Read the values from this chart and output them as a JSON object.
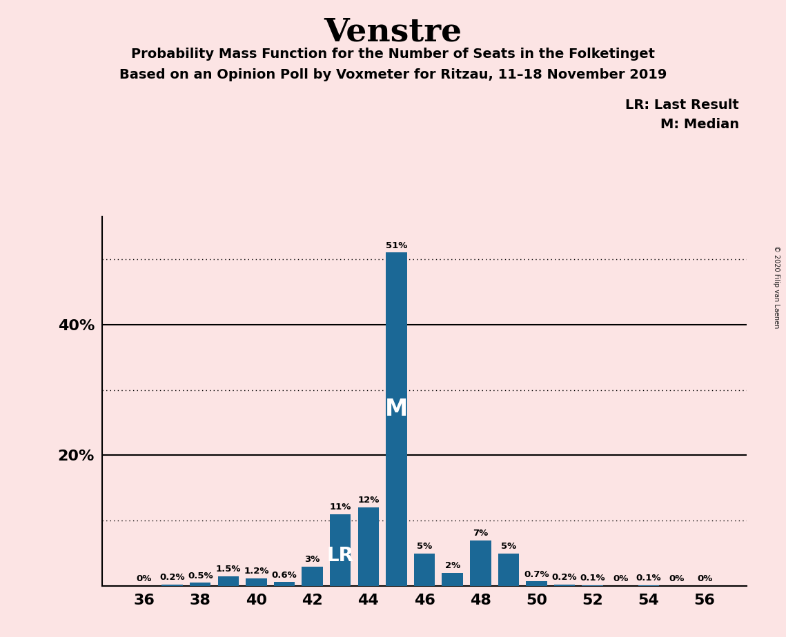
{
  "title": "Venstre",
  "subtitle1": "Probability Mass Function for the Number of Seats in the Folketinget",
  "subtitle2": "Based on an Opinion Poll by Voxmeter for Ritzau, 11–18 November 2019",
  "copyright": "© 2020 Filip van Laenen",
  "seats": [
    36,
    37,
    38,
    39,
    40,
    41,
    42,
    43,
    44,
    45,
    46,
    47,
    48,
    49,
    50,
    51,
    52,
    53,
    54,
    55,
    56
  ],
  "probs": [
    0.0,
    0.002,
    0.005,
    0.015,
    0.012,
    0.006,
    0.03,
    0.11,
    0.12,
    0.51,
    0.05,
    0.02,
    0.07,
    0.05,
    0.007,
    0.002,
    0.001,
    0.0,
    0.001,
    0.0,
    0.0
  ],
  "labels": [
    "0%",
    "0.2%",
    "0.5%",
    "1.5%",
    "1.2%",
    "0.6%",
    "3%",
    "11%",
    "12%",
    "51%",
    "5%",
    "2%",
    "7%",
    "5%",
    "0.7%",
    "0.2%",
    "0.1%",
    "0%",
    "0.1%",
    "0%",
    "0%"
  ],
  "bar_color": "#1b6896",
  "background_color": "#fce4e4",
  "last_result_seat": 43,
  "median_seat": 45,
  "dotted_lines": [
    0.1,
    0.3,
    0.5
  ],
  "solid_lines": [
    0.2,
    0.4
  ],
  "ytick_positions": [
    0.2,
    0.4
  ],
  "ytick_labels": [
    "20%",
    "40%"
  ],
  "xtick_seats": [
    36,
    38,
    40,
    42,
    44,
    46,
    48,
    50,
    52,
    54,
    56
  ],
  "legend_lr": "LR: Last Result",
  "legend_m": "M: Median",
  "ylim_max": 0.565
}
